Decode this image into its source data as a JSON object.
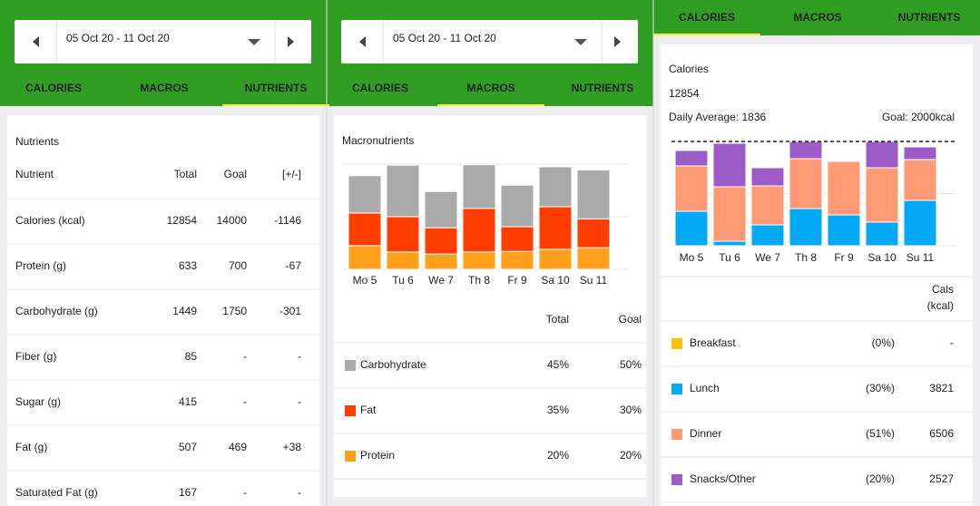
{
  "tabs": [
    "CALORIES",
    "MACROS",
    "NUTRIENTS"
  ],
  "date_range": "05 Oct 20 - 11 Oct 20",
  "nutrients": {
    "active_tab": 2,
    "title": "Nutrients",
    "header": [
      "Nutrient",
      "Total",
      "Goal",
      "[+/-]"
    ],
    "rows": [
      [
        "Calories (kcal)",
        12854,
        14000,
        -1146
      ],
      [
        "Protein (g)",
        633,
        700,
        -67
      ],
      [
        "Carbohydrate (g)",
        1449,
        1750,
        -301
      ],
      [
        "Fiber (g)",
        85,
        "-",
        "-"
      ],
      [
        "Sugar (g)",
        415,
        "-",
        "-"
      ],
      [
        "Fat (g)",
        507,
        469,
        "+38"
      ],
      [
        "Saturated Fat (g)",
        167,
        "-",
        "-"
      ]
    ]
  },
  "macros": {
    "active_tab": 1,
    "title": "Macronutrients",
    "header": [
      "Total",
      "Goal"
    ],
    "rows": [
      {
        "total": "45%",
        "goal": "50%"
      },
      {
        "total": "35%",
        "goal": "30%",
        "total_color": "#f44336"
      },
      {
        "total": "20%",
        "goal": "20%"
      }
    ]
  },
  "calories": {
    "active_tab": 0,
    "title": "Calories",
    "total": 12854,
    "daily_average": "Daily Average: 1836",
    "goal": "Goal: 2000kcal",
    "header": [
      "Cals",
      "(kcal)"
    ],
    "rows": [
      {
        "percent": "(0%)",
        "cals": "-"
      },
      {
        "percent": "(30%)",
        "cals": 3821
      },
      {
        "percent": "(51%)",
        "cals": 6506
      },
      {
        "percent": "(20%)",
        "cals": 2527
      }
    ]
  },
  "chart_data": [
    {
      "type": "bar",
      "stacked": true,
      "grid": true,
      "categories": [
        "Mo 5",
        "Tu 6",
        "We 7",
        "Th 8",
        "Fr 9",
        "Sa 10",
        "Su 11"
      ],
      "ylim": [
        0,
        200
      ],
      "yticks": [
        0,
        100,
        200
      ],
      "series": [
        {
          "name": "Carbohydrate",
          "color": "#aaaaaa",
          "values": [
            71,
            98,
            69,
            83,
            79,
            76,
            93
          ]
        },
        {
          "name": "Fat",
          "color": "#ff3d00",
          "values": [
            62,
            67,
            50,
            83,
            47,
            81,
            55
          ]
        },
        {
          "name": "Protein",
          "color": "#ff9f1c",
          "values": [
            45,
            33,
            29,
            33,
            34,
            38,
            41
          ]
        }
      ]
    },
    {
      "type": "bar",
      "stacked": true,
      "grid": true,
      "categories": [
        "Mo 5",
        "Tu 6",
        "We 7",
        "Th 8",
        "Fr 9",
        "Sa 10",
        "Su 11"
      ],
      "ylim": [
        0,
        2000
      ],
      "yticks": [
        0,
        1000,
        2000
      ],
      "goal": 2000,
      "series": [
        {
          "name": "Breakfast",
          "color": "#ffc107",
          "values": [
            0,
            0,
            0,
            0,
            0,
            0,
            0
          ]
        },
        {
          "name": "Lunch",
          "color": "#03a9f4",
          "values": [
            661,
            87,
            400,
            713,
            591,
            452,
            870
          ]
        },
        {
          "name": "Dinner",
          "color": "#ff9a76",
          "values": [
            870,
            1043,
            748,
            957,
            1026,
            1043,
            783
          ]
        },
        {
          "name": "Snacks/Other",
          "color": "#9c5cc8",
          "values": [
            296,
            835,
            348,
            330,
            0,
            504,
            243
          ]
        }
      ]
    }
  ]
}
